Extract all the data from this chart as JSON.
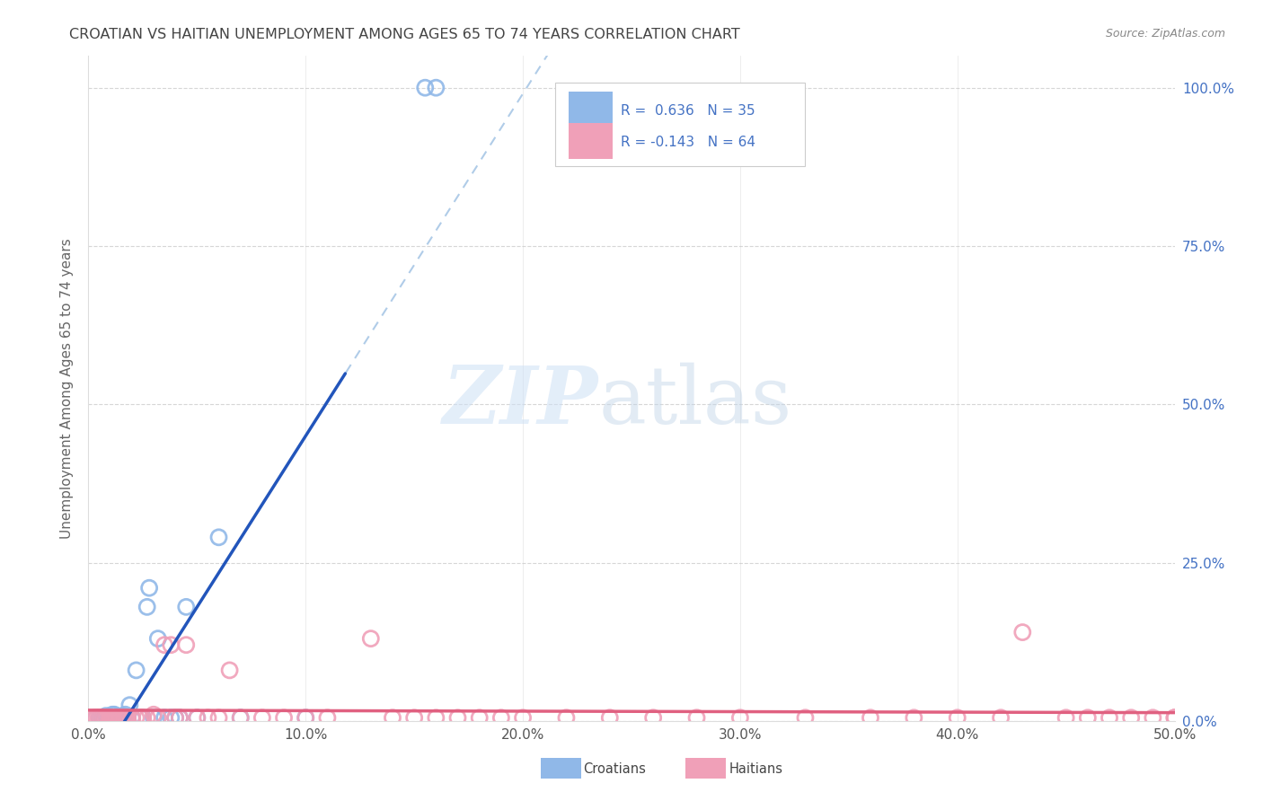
{
  "title": "CROATIAN VS HAITIAN UNEMPLOYMENT AMONG AGES 65 TO 74 YEARS CORRELATION CHART",
  "source": "Source: ZipAtlas.com",
  "ylabel": "Unemployment Among Ages 65 to 74 years",
  "ytick_labels": [
    "0.0%",
    "25.0%",
    "50.0%",
    "75.0%",
    "100.0%"
  ],
  "ytick_vals": [
    0.0,
    0.25,
    0.5,
    0.75,
    1.0
  ],
  "xtick_labels": [
    "0.0%",
    "10.0%",
    "20.0%",
    "30.0%",
    "40.0%",
    "50.0%"
  ],
  "xtick_vals": [
    0.0,
    0.1,
    0.2,
    0.3,
    0.4,
    0.5
  ],
  "xlim": [
    0.0,
    0.5
  ],
  "ylim": [
    0.0,
    1.05
  ],
  "croatian_color": "#90b8e8",
  "haitian_color": "#f0a0b8",
  "croatian_line_color": "#2255bb",
  "haitian_line_color": "#e06080",
  "dash_color": "#b0cce8",
  "legend_R_croatian": "R =  0.636",
  "legend_N_croatian": "N = 35",
  "legend_R_haitian": "R = -0.143",
  "legend_N_haitian": "N = 64",
  "tick_color": "#4472c4",
  "grid_color": "#cccccc",
  "title_color": "#444444",
  "source_color": "#888888",
  "ylabel_color": "#666666",
  "croatian_x": [
    0.003,
    0.005,
    0.006,
    0.007,
    0.008,
    0.009,
    0.01,
    0.011,
    0.012,
    0.013,
    0.014,
    0.015,
    0.016,
    0.017,
    0.018,
    0.019,
    0.02,
    0.022,
    0.024,
    0.025,
    0.027,
    0.028,
    0.03,
    0.032,
    0.035,
    0.038,
    0.04,
    0.042,
    0.045,
    0.05,
    0.06,
    0.07,
    0.1,
    0.155,
    0.16
  ],
  "croatian_y": [
    0.003,
    0.005,
    0.005,
    0.005,
    0.008,
    0.005,
    0.005,
    0.01,
    0.01,
    0.005,
    0.005,
    0.005,
    0.008,
    0.01,
    0.005,
    0.025,
    0.005,
    0.08,
    0.005,
    0.005,
    0.18,
    0.21,
    0.005,
    0.13,
    0.005,
    0.005,
    0.005,
    0.005,
    0.18,
    0.005,
    0.29,
    0.005,
    0.005,
    1.0,
    1.0
  ],
  "haitian_x": [
    0.003,
    0.004,
    0.005,
    0.006,
    0.007,
    0.008,
    0.009,
    0.01,
    0.011,
    0.012,
    0.013,
    0.014,
    0.015,
    0.016,
    0.017,
    0.018,
    0.02,
    0.022,
    0.024,
    0.025,
    0.027,
    0.03,
    0.032,
    0.035,
    0.038,
    0.04,
    0.042,
    0.045,
    0.05,
    0.055,
    0.06,
    0.065,
    0.07,
    0.08,
    0.09,
    0.1,
    0.11,
    0.13,
    0.14,
    0.15,
    0.16,
    0.17,
    0.18,
    0.19,
    0.2,
    0.22,
    0.24,
    0.26,
    0.28,
    0.3,
    0.33,
    0.36,
    0.38,
    0.4,
    0.42,
    0.43,
    0.45,
    0.46,
    0.47,
    0.48,
    0.49,
    0.5,
    0.5,
    0.5
  ],
  "haitian_y": [
    0.005,
    0.005,
    0.005,
    0.005,
    0.005,
    0.005,
    0.005,
    0.005,
    0.005,
    0.005,
    0.005,
    0.005,
    0.005,
    0.005,
    0.005,
    0.005,
    0.005,
    0.005,
    0.005,
    0.005,
    0.005,
    0.01,
    0.005,
    0.12,
    0.12,
    0.005,
    0.005,
    0.12,
    0.005,
    0.005,
    0.005,
    0.08,
    0.005,
    0.005,
    0.005,
    0.005,
    0.005,
    0.13,
    0.005,
    0.005,
    0.005,
    0.005,
    0.005,
    0.005,
    0.005,
    0.005,
    0.005,
    0.005,
    0.005,
    0.005,
    0.005,
    0.005,
    0.005,
    0.005,
    0.005,
    0.14,
    0.005,
    0.005,
    0.005,
    0.005,
    0.005,
    0.005,
    0.005,
    0.005
  ]
}
